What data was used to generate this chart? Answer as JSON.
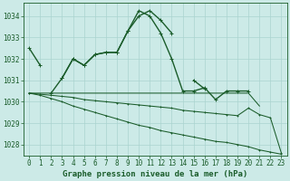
{
  "xlabel": "Graphe pression niveau de la mer (hPa)",
  "x": [
    0,
    1,
    2,
    3,
    4,
    5,
    6,
    7,
    8,
    9,
    10,
    11,
    12,
    13,
    14,
    15,
    16,
    17,
    18,
    19,
    20,
    21,
    22,
    23
  ],
  "s1": [
    1032.5,
    1031.7,
    null,
    1031.1,
    1032.0,
    1031.7,
    1032.2,
    1032.3,
    1032.3,
    1033.3,
    1034.0,
    1034.25,
    1033.8,
    1033.2,
    null,
    1031.0,
    1030.6,
    null,
    null,
    null,
    null,
    null,
    null,
    null
  ],
  "s2": [
    null,
    null,
    1030.4,
    1031.1,
    1032.0,
    1031.7,
    1032.2,
    1032.3,
    1032.3,
    1033.3,
    1034.25,
    1034.0,
    1033.2,
    1032.0,
    1030.5,
    1030.5,
    1030.65,
    1030.1,
    1030.5,
    1030.5,
    1030.5,
    null,
    null,
    null
  ],
  "s3": [
    1030.4,
    1030.4,
    1030.4,
    1030.4,
    1030.4,
    1030.4,
    1030.4,
    1030.4,
    1030.4,
    1030.4,
    1030.4,
    1030.4,
    1030.4,
    1030.4,
    1030.4,
    1030.4,
    1030.4,
    1030.4,
    1030.4,
    1030.4,
    1030.4,
    1029.8,
    null,
    null
  ],
  "s4": [
    1030.4,
    1030.35,
    1030.3,
    1030.25,
    1030.2,
    1030.1,
    1030.05,
    1030.0,
    1029.95,
    1029.9,
    1029.85,
    1029.8,
    1029.75,
    1029.7,
    1029.6,
    1029.55,
    1029.5,
    1029.45,
    1029.4,
    1029.35,
    1029.7,
    1029.4,
    1029.25,
    1027.6
  ],
  "s5": [
    1030.4,
    1030.3,
    1030.15,
    1030.0,
    1029.8,
    1029.65,
    1029.5,
    1029.35,
    1029.2,
    1029.05,
    1028.9,
    1028.8,
    1028.65,
    1028.55,
    1028.45,
    1028.35,
    1028.25,
    1028.15,
    1028.1,
    1028.0,
    1027.9,
    1027.75,
    1027.65,
    1027.55
  ],
  "bg_color": "#cceae7",
  "grid_color": "#aad4d0",
  "line_color": "#1a5c2a",
  "ylim": [
    1027.5,
    1034.6
  ],
  "yticks": [
    1028,
    1029,
    1030,
    1031,
    1032,
    1033,
    1034
  ],
  "xticks": [
    0,
    1,
    2,
    3,
    4,
    5,
    6,
    7,
    8,
    9,
    10,
    11,
    12,
    13,
    14,
    15,
    16,
    17,
    18,
    19,
    20,
    21,
    22,
    23
  ],
  "xlabel_fontsize": 6.5,
  "tick_fontsize": 5.5,
  "marker_size": 2.2,
  "lw_main": 1.0,
  "lw_thin": 0.75
}
